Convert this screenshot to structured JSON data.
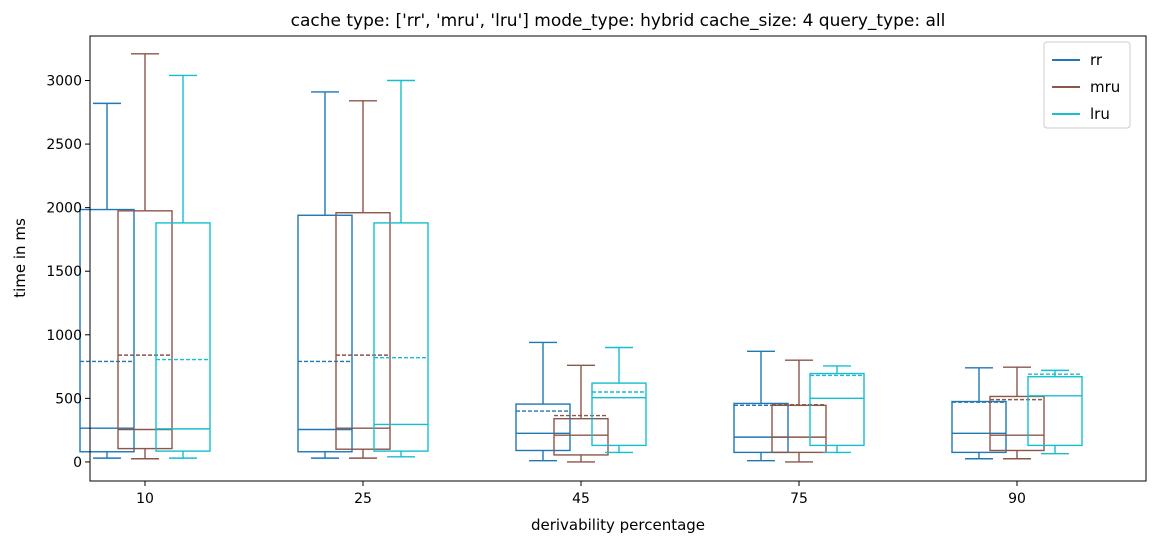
{
  "chart_data": {
    "type": "box",
    "title": "cache type: ['rr', 'mru', 'lru'] mode_type: hybrid cache_size: 4 query_type: all",
    "xlabel": "derivability percentage",
    "ylabel": "time in ms",
    "categories": [
      "10",
      "25",
      "45",
      "75",
      "90"
    ],
    "ylim": [
      -150,
      3350
    ],
    "yticks": [
      0,
      500,
      1000,
      1500,
      2000,
      2500,
      3000
    ],
    "legend": {
      "position": "top-right"
    },
    "series": [
      {
        "name": "rr",
        "color": "#1f77b4",
        "boxes": [
          {
            "whisker_low": 30,
            "q1": 80,
            "median": 265,
            "q3": 1985,
            "whisker_high": 2820,
            "mean": 790
          },
          {
            "whisker_low": 30,
            "q1": 80,
            "median": 255,
            "q3": 1940,
            "whisker_high": 2910,
            "mean": 790
          },
          {
            "whisker_low": 10,
            "q1": 90,
            "median": 225,
            "q3": 455,
            "whisker_high": 940,
            "mean": 400
          },
          {
            "whisker_low": 10,
            "q1": 75,
            "median": 195,
            "q3": 460,
            "whisker_high": 870,
            "mean": 445
          },
          {
            "whisker_low": 25,
            "q1": 75,
            "median": 225,
            "q3": 475,
            "whisker_high": 740,
            "mean": 470
          }
        ]
      },
      {
        "name": "mru",
        "color": "#8c564b",
        "boxes": [
          {
            "whisker_low": 25,
            "q1": 105,
            "median": 255,
            "q3": 1975,
            "whisker_high": 3210,
            "mean": 840
          },
          {
            "whisker_low": 30,
            "q1": 100,
            "median": 265,
            "q3": 1960,
            "whisker_high": 2840,
            "mean": 840
          },
          {
            "whisker_low": 0,
            "q1": 55,
            "median": 210,
            "q3": 340,
            "whisker_high": 760,
            "mean": 365
          },
          {
            "whisker_low": 0,
            "q1": 75,
            "median": 195,
            "q3": 445,
            "whisker_high": 800,
            "mean": 450
          },
          {
            "whisker_low": 25,
            "q1": 90,
            "median": 210,
            "q3": 515,
            "whisker_high": 745,
            "mean": 490
          }
        ]
      },
      {
        "name": "lru",
        "color": "#17becf",
        "boxes": [
          {
            "whisker_low": 30,
            "q1": 85,
            "median": 260,
            "q3": 1880,
            "whisker_high": 3040,
            "mean": 805
          },
          {
            "whisker_low": 40,
            "q1": 85,
            "median": 295,
            "q3": 1880,
            "whisker_high": 3000,
            "mean": 820
          },
          {
            "whisker_low": 75,
            "q1": 130,
            "median": 505,
            "q3": 620,
            "whisker_high": 900,
            "mean": 550
          },
          {
            "whisker_low": 75,
            "q1": 130,
            "median": 500,
            "q3": 695,
            "whisker_high": 755,
            "mean": 680
          },
          {
            "whisker_low": 65,
            "q1": 130,
            "median": 520,
            "q3": 670,
            "whisker_high": 720,
            "mean": 690
          }
        ]
      }
    ]
  }
}
